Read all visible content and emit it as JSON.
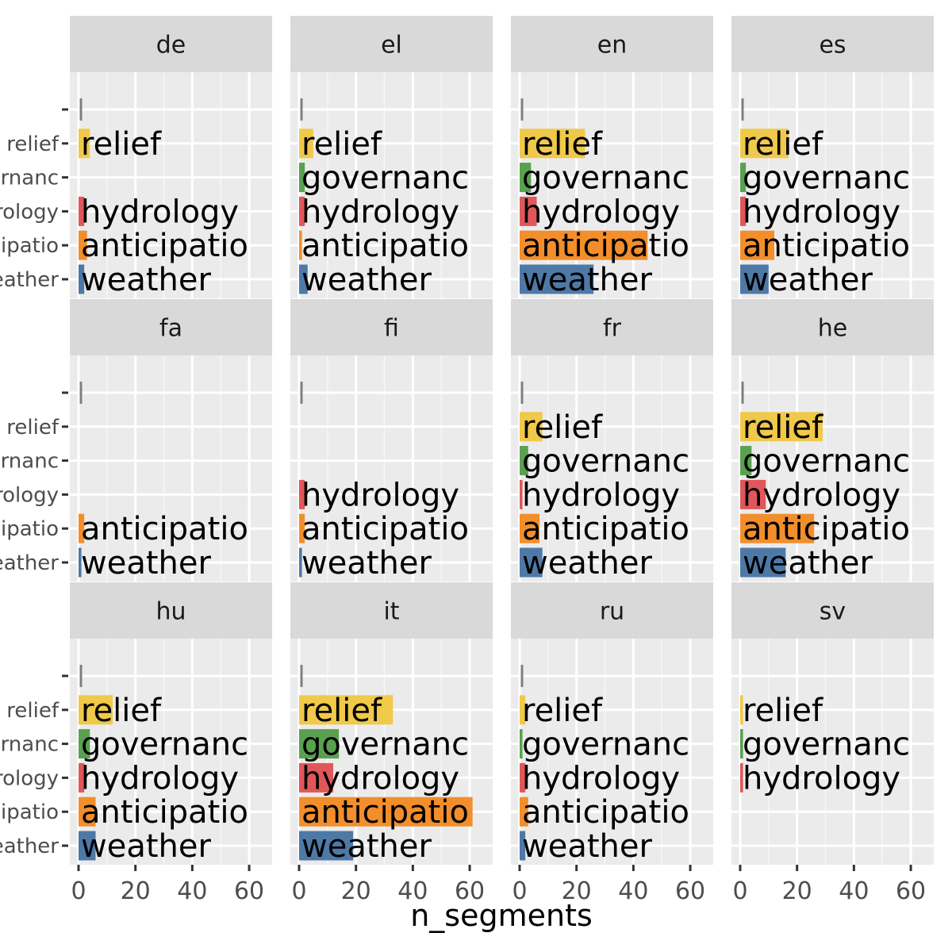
{
  "chart_data": {
    "type": "bar",
    "orientation": "horizontal",
    "xlabel": "n_segments",
    "ylabel": "",
    "xlim": [
      0,
      65
    ],
    "x_ticks": [
      "0",
      "20",
      "40",
      "60"
    ],
    "grid": true,
    "categories": [
      "",
      "relief",
      "governanc",
      "hydrology",
      "anticipatio",
      "weather"
    ],
    "colors": {
      "": "#7f7f7f",
      "relief": "#f0c94a",
      "governanc": "#59a14f",
      "hydrology": "#e15759",
      "anticipatio": "#f28e2b",
      "weather": "#4e79a7"
    },
    "facets": [
      {
        "name": "de",
        "values": {
          "": 0.5,
          "relief": 4,
          "hydrology": 2,
          "anticipatio": 3,
          "weather": 2
        }
      },
      {
        "name": "el",
        "values": {
          "": 0.5,
          "relief": 5,
          "governanc": 2,
          "hydrology": 2,
          "anticipatio": 1,
          "weather": 3
        }
      },
      {
        "name": "en",
        "values": {
          "": 0.5,
          "relief": 23,
          "governanc": 4,
          "hydrology": 6,
          "anticipatio": 45,
          "weather": 26
        }
      },
      {
        "name": "es",
        "values": {
          "": 0.5,
          "relief": 17,
          "governanc": 2,
          "hydrology": 2,
          "anticipatio": 12,
          "weather": 10
        }
      },
      {
        "name": "fa",
        "values": {
          "": 0.5,
          "anticipatio": 2,
          "weather": 1
        }
      },
      {
        "name": "fi",
        "values": {
          "": 0.5,
          "hydrology": 2,
          "anticipatio": 2,
          "weather": 1
        }
      },
      {
        "name": "fr",
        "values": {
          "": 0.5,
          "relief": 8,
          "governanc": 3,
          "hydrology": 1,
          "anticipatio": 7,
          "weather": 8
        }
      },
      {
        "name": "he",
        "values": {
          "": 0.5,
          "relief": 29,
          "governanc": 4,
          "hydrology": 9,
          "anticipatio": 26,
          "weather": 16
        }
      },
      {
        "name": "hu",
        "values": {
          "": 0.5,
          "relief": 12,
          "governanc": 4,
          "hydrology": 2,
          "anticipatio": 6,
          "weather": 6
        }
      },
      {
        "name": "it",
        "values": {
          "": 0.5,
          "relief": 33,
          "governanc": 14,
          "hydrology": 12,
          "anticipatio": 61,
          "weather": 19
        }
      },
      {
        "name": "ru",
        "values": {
          "": 0.5,
          "relief": 2,
          "governanc": 1,
          "hydrology": 2,
          "anticipatio": 3,
          "weather": 2
        }
      },
      {
        "name": "sv",
        "values": {
          "relief": 1,
          "governanc": 1,
          "hydrology": 1
        }
      }
    ]
  }
}
